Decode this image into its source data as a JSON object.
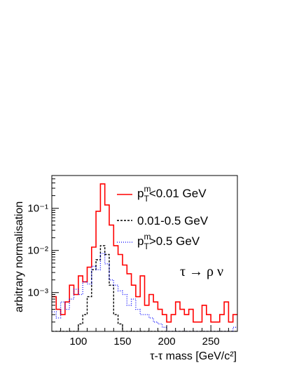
{
  "chart_data": {
    "type": "line",
    "xlabel": "τ-τ mass [GeV/c²]",
    "ylabel": "arbitrary normalisation",
    "xlim": [
      70,
      280
    ],
    "ylim": [
      0.00012,
      0.6
    ],
    "yscale": "log",
    "bin_width": 5,
    "xticks": [
      100,
      150,
      200,
      250
    ],
    "yticks": [
      {
        "value": 0.001,
        "label": "10⁻³"
      },
      {
        "value": 0.01,
        "label": "10⁻²"
      },
      {
        "value": 0.1,
        "label": "10⁻¹"
      }
    ],
    "annotation": "τ → ρ ν",
    "legend_position": "top-right",
    "series": [
      {
        "name": "pTm<0.01 GeV",
        "color": "#ff0000",
        "style": "solid",
        "x": [
          70,
          75,
          80,
          85,
          90,
          95,
          100,
          105,
          110,
          115,
          120,
          125,
          130,
          135,
          140,
          145,
          150,
          155,
          160,
          165,
          170,
          175,
          180,
          185,
          190,
          195,
          200,
          205,
          210,
          215,
          220,
          225,
          230,
          235,
          240,
          245,
          250,
          255,
          260,
          265,
          270,
          275
        ],
        "values": [
          0.0008,
          0.0004,
          0.0003,
          0.0006,
          0.0015,
          0.0009,
          0.0025,
          0.0018,
          0.004,
          0.012,
          0.085,
          0.38,
          0.12,
          0.04,
          0.013,
          0.008,
          0.0045,
          0.0028,
          0.0015,
          0.0008,
          0.0025,
          0.0005,
          0.0009,
          0.0006,
          0.0004,
          0.0003,
          0.0002,
          0.0003,
          0.0006,
          0.0004,
          0.0003,
          0.0004,
          0.0002,
          0.0002,
          0.0005,
          0.0003,
          0.0002,
          0.0002,
          0.0003,
          0.0006,
          0.0002,
          0.0003
        ]
      },
      {
        "name": "0.01-0.5 GeV",
        "color": "#000000",
        "style": "dashed",
        "x": [
          70,
          75,
          80,
          85,
          90,
          95,
          100,
          105,
          110,
          115,
          120,
          125,
          130,
          135,
          140,
          145,
          150,
          155,
          160,
          165,
          170,
          175,
          180,
          185,
          190,
          195,
          200,
          205,
          210,
          215,
          220,
          225,
          230,
          235,
          240,
          245,
          250,
          255,
          260,
          265,
          270,
          275
        ],
        "values": [
          null,
          null,
          null,
          null,
          null,
          null,
          0.00018,
          0.0003,
          0.0008,
          0.0035,
          0.006,
          0.013,
          0.008,
          0.0015,
          0.0003,
          0.00018,
          null,
          null,
          null,
          null,
          null,
          null,
          null,
          null,
          null,
          null,
          null,
          null,
          null,
          null,
          null,
          null,
          null,
          null,
          null,
          null,
          null,
          null,
          null,
          null,
          null,
          null
        ]
      },
      {
        "name": "pTm>0.5 GeV",
        "color": "#0000ff",
        "style": "dotted",
        "x": [
          70,
          75,
          80,
          85,
          90,
          95,
          100,
          105,
          110,
          115,
          120,
          125,
          130,
          135,
          140,
          145,
          150,
          155,
          160,
          165,
          170,
          175,
          180,
          185,
          190,
          195,
          200,
          205,
          210,
          215,
          220,
          225,
          230,
          235,
          240,
          245,
          250,
          255,
          260,
          265,
          270,
          275
        ],
        "values": [
          0.00035,
          0.00025,
          0.0006,
          0.0004,
          0.0007,
          0.0012,
          0.0009,
          0.0018,
          0.0016,
          0.0042,
          0.0035,
          0.0085,
          0.0048,
          0.002,
          0.0015,
          0.0011,
          0.0009,
          0.0005,
          0.0007,
          0.0004,
          0.0003,
          0.0003,
          0.00025,
          0.0002,
          0.00018,
          0.00015,
          null,
          null,
          null,
          null,
          null,
          null,
          null,
          null,
          null,
          null,
          null,
          null,
          null,
          null,
          null,
          0.00015
        ]
      }
    ]
  },
  "legend": {
    "item1": {
      "main": "p",
      "sup": "m",
      "sub": "T",
      "rest": "<0.01 GeV"
    },
    "item2": {
      "rest": "0.01-0.5 GeV"
    },
    "item3": {
      "main": "p",
      "sup": "m",
      "sub": "T",
      "rest": ">0.5 GeV"
    }
  }
}
